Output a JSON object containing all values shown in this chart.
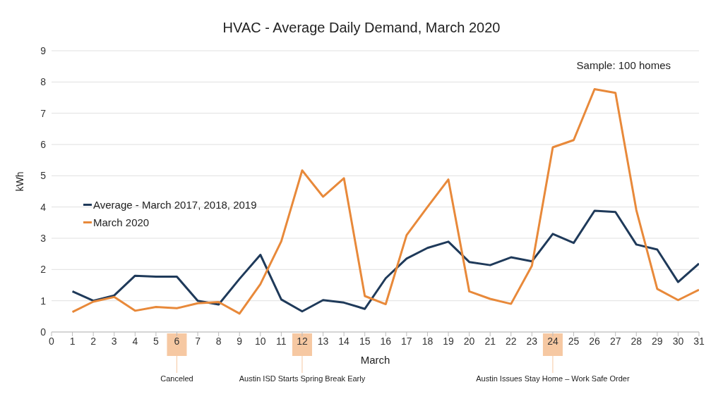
{
  "chart_data": {
    "type": "line",
    "title": "HVAC - Average Daily Demand, March 2020",
    "xlabel": "March",
    "ylabel": "kWh",
    "x": [
      1,
      2,
      3,
      4,
      5,
      6,
      7,
      8,
      9,
      10,
      11,
      12,
      13,
      14,
      15,
      16,
      17,
      18,
      19,
      20,
      21,
      22,
      23,
      24,
      25,
      26,
      27,
      28,
      29,
      30,
      31
    ],
    "series": [
      {
        "name": "Average - March 2017, 2018, 2019",
        "color": "#1f3a5a",
        "values": [
          1.3,
          1.0,
          1.17,
          1.8,
          1.77,
          1.77,
          1.0,
          0.88,
          1.7,
          2.47,
          1.04,
          0.66,
          1.02,
          0.94,
          0.74,
          1.72,
          2.35,
          2.69,
          2.89,
          2.24,
          2.14,
          2.39,
          2.26,
          3.14,
          2.85,
          3.88,
          3.84,
          2.8,
          2.64,
          1.6,
          2.19
        ]
      },
      {
        "name": "March 2020",
        "color": "#e8893a",
        "values": [
          0.64,
          0.97,
          1.12,
          0.68,
          0.8,
          0.76,
          0.92,
          0.96,
          0.59,
          1.53,
          2.9,
          5.17,
          4.33,
          4.92,
          1.15,
          0.89,
          3.1,
          4.0,
          4.88,
          1.3,
          1.06,
          0.9,
          2.12,
          5.91,
          6.14,
          7.77,
          7.65,
          3.9,
          1.38,
          1.02,
          1.35
        ]
      }
    ],
    "xlim": [
      0,
      31
    ],
    "xticks": [
      0,
      1,
      2,
      3,
      4,
      5,
      6,
      7,
      8,
      9,
      10,
      11,
      12,
      13,
      14,
      15,
      16,
      17,
      18,
      19,
      20,
      21,
      22,
      23,
      24,
      25,
      26,
      27,
      28,
      29,
      30,
      31
    ],
    "ylim": [
      0,
      9
    ],
    "yticks": [
      0,
      1,
      2,
      3,
      4,
      5,
      6,
      7,
      8,
      9
    ],
    "grid": "y",
    "legend": "left",
    "marker": "none",
    "line_style": "solid",
    "annotations": [
      "Sample: 100 homes"
    ],
    "ref_lines": [
      {
        "axis": "x",
        "value": 6,
        "label": "Canceled",
        "color": "#f6c8a2"
      },
      {
        "axis": "x",
        "value": 12,
        "label": "Austin ISD Starts Spring Break Early",
        "color": "#f6c8a2"
      },
      {
        "axis": "x",
        "value": 24,
        "label": "Austin Issues Stay Home – Work Safe Order",
        "color": "#f6c8a2"
      }
    ]
  }
}
